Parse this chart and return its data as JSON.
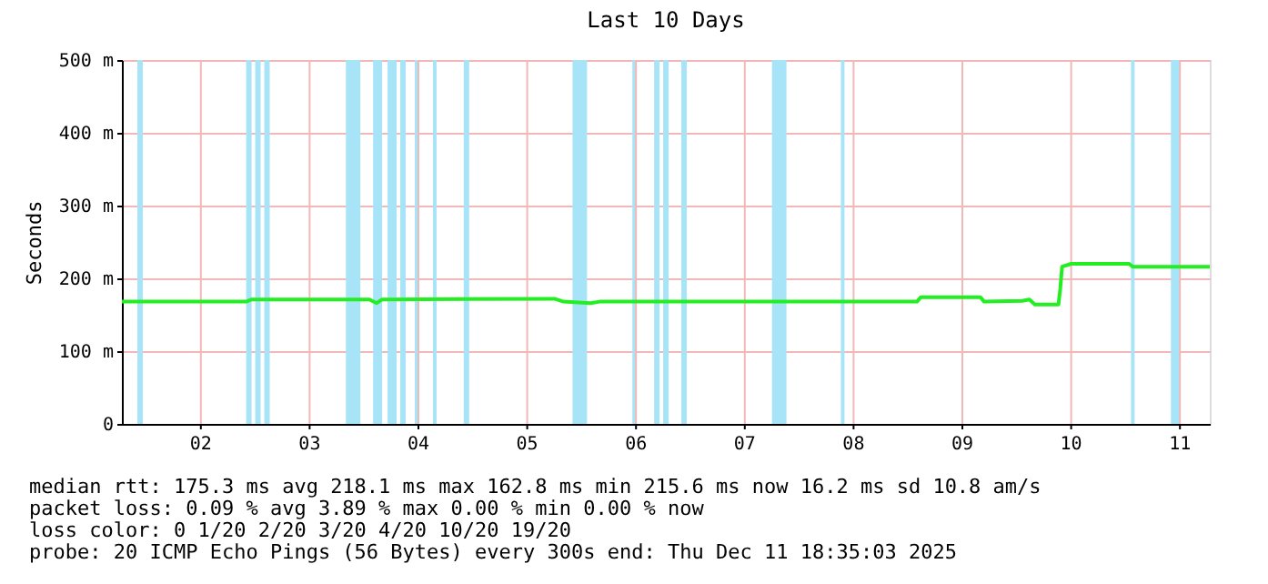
{
  "chart_data": {
    "type": "line",
    "title": "Last 10 Days",
    "ylabel": "Seconds",
    "x": [
      "2025-12-01T18:35",
      "2025-12-02T22:00",
      "2025-12-02T23:12",
      "2025-12-03T20:00",
      "2025-12-04T01:12",
      "2025-12-04T02:48",
      "2025-12-04T04:00",
      "2025-12-05T18:00",
      "2025-12-05T20:00",
      "2025-12-05T23:12",
      "2025-12-06T02:00",
      "2025-12-06T04:00",
      "2025-12-09T02:00",
      "2025-12-09T02:48",
      "2025-12-09T16:00",
      "2025-12-09T16:48",
      "2025-12-10T01:12",
      "2025-12-10T02:48",
      "2025-12-10T04:00",
      "2025-12-10T09:12",
      "2025-12-10T09:36",
      "2025-12-10T10:00",
      "2025-12-10T12:00",
      "2025-12-11T00:48",
      "2025-12-11T01:36",
      "2025-12-11T18:35"
    ],
    "series": [
      {
        "color": "#22ee22",
        "values": [
          168,
          168,
          171,
          171,
          171,
          166,
          171,
          172,
          168,
          167,
          166,
          168,
          168,
          174,
          174,
          168,
          169,
          171,
          164,
          164,
          186,
          216,
          220,
          220,
          216,
          216
        ]
      }
    ],
    "xlim": [
      "2025-12-01T18:35",
      "2025-12-11T18:35"
    ],
    "xticks": [
      {
        "value": "2025-12-02T12:00",
        "label": "02"
      },
      {
        "value": "2025-12-03T12:00",
        "label": "03"
      },
      {
        "value": "2025-12-04T12:00",
        "label": "04"
      },
      {
        "value": "2025-12-05T12:00",
        "label": "05"
      },
      {
        "value": "2025-12-06T12:00",
        "label": "06"
      },
      {
        "value": "2025-12-07T12:00",
        "label": "07"
      },
      {
        "value": "2025-12-08T12:00",
        "label": "08"
      },
      {
        "value": "2025-12-09T12:00",
        "label": "09"
      },
      {
        "value": "2025-12-10T12:00",
        "label": "10"
      },
      {
        "value": "2025-12-11T12:00",
        "label": "11"
      }
    ],
    "ylim": [
      0,
      500
    ],
    "yticks": [
      {
        "value": 0,
        "label": "0"
      },
      {
        "value": 100,
        "label": "100 m"
      },
      {
        "value": 200,
        "label": "200 m"
      },
      {
        "value": 300,
        "label": "300 m"
      },
      {
        "value": 400,
        "label": "400 m"
      },
      {
        "value": 500,
        "label": "500 m"
      }
    ],
    "grid": true,
    "legend": false,
    "marker": "none",
    "line_style": "solid",
    "bands": [
      {
        "axis": "x",
        "from": "2025-12-01T22:00",
        "to": "2025-12-01T23:12",
        "color": "#a8e4f8"
      },
      {
        "axis": "x",
        "from": "2025-12-02T22:00",
        "to": "2025-12-02T23:12",
        "color": "#a8e4f8"
      },
      {
        "axis": "x",
        "from": "2025-12-03T00:00",
        "to": "2025-12-03T01:12",
        "color": "#a8e4f8"
      },
      {
        "axis": "x",
        "from": "2025-12-03T02:00",
        "to": "2025-12-03T03:12",
        "color": "#a8e4f8"
      },
      {
        "axis": "x",
        "from": "2025-12-03T20:00",
        "to": "2025-12-03T23:12",
        "color": "#a8e4f8"
      },
      {
        "axis": "x",
        "from": "2025-12-04T02:00",
        "to": "2025-12-04T04:00",
        "color": "#a8e4f8"
      },
      {
        "axis": "x",
        "from": "2025-12-04T05:12",
        "to": "2025-12-04T07:12",
        "color": "#a8e4f8"
      },
      {
        "axis": "x",
        "from": "2025-12-04T08:00",
        "to": "2025-12-04T09:12",
        "color": "#a8e4f8"
      },
      {
        "axis": "x",
        "from": "2025-12-04T11:12",
        "to": "2025-12-04T12:00",
        "color": "#a8e4f8"
      },
      {
        "axis": "x",
        "from": "2025-12-04T15:12",
        "to": "2025-12-04T16:00",
        "color": "#a8e4f8"
      },
      {
        "axis": "x",
        "from": "2025-12-04T22:00",
        "to": "2025-12-04T23:12",
        "color": "#a8e4f8"
      },
      {
        "axis": "x",
        "from": "2025-12-05T22:00",
        "to": "2025-12-06T01:12",
        "color": "#a8e4f8"
      },
      {
        "axis": "x",
        "from": "2025-12-06T11:12",
        "to": "2025-12-06T12:00",
        "color": "#a8e4f8"
      },
      {
        "axis": "x",
        "from": "2025-12-06T16:00",
        "to": "2025-12-06T17:12",
        "color": "#a8e4f8"
      },
      {
        "axis": "x",
        "from": "2025-12-06T18:00",
        "to": "2025-12-06T19:12",
        "color": "#a8e4f8"
      },
      {
        "axis": "x",
        "from": "2025-12-06T22:00",
        "to": "2025-12-06T23:12",
        "color": "#a8e4f8"
      },
      {
        "axis": "x",
        "from": "2025-12-07T18:00",
        "to": "2025-12-07T21:12",
        "color": "#a8e4f8"
      },
      {
        "axis": "x",
        "from": "2025-12-08T09:12",
        "to": "2025-12-08T10:00",
        "color": "#a8e4f8"
      },
      {
        "axis": "x",
        "from": "2025-12-11T01:12",
        "to": "2025-12-11T02:00",
        "color": "#a8e4f8"
      },
      {
        "axis": "x",
        "from": "2025-12-11T10:00",
        "to": "2025-12-11T12:00",
        "color": "#a8e4f8"
      }
    ],
    "annotations": [
      "median rtt:  175.3 ms avg  218.1 ms max  162.8 ms min  215.6 ms now  16.2 ms sd  10.8   am/s",
      "packet loss: 0.09 % avg  3.89 % max  0.00 % min  0.00 % now",
      "loss color:  0  1/20  2/20  3/20  4/20  10/20  19/20",
      "probe:       20 ICMP Echo Pings (56 Bytes) every 300s          end: Thu Dec 11 18:35:03 2025"
    ]
  }
}
